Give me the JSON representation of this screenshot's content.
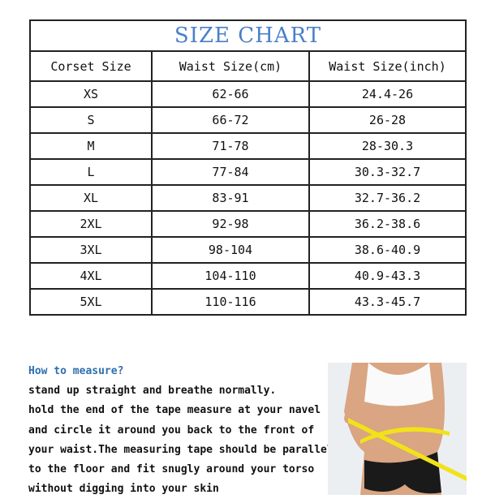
{
  "title": "SIZE CHART",
  "headers": [
    "Corset Size",
    "Waist Size(cm)",
    "Waist Size(inch)"
  ],
  "rows": [
    [
      "XS",
      "62-66",
      "24.4-26"
    ],
    [
      "S",
      "66-72",
      "26-28"
    ],
    [
      "M",
      "71-78",
      "28-30.3"
    ],
    [
      "L",
      "77-84",
      "30.3-32.7"
    ],
    [
      "XL",
      "83-91",
      "32.7-36.2"
    ],
    [
      "2XL",
      "92-98",
      "36.2-38.6"
    ],
    [
      "3XL",
      "98-104",
      "38.6-40.9"
    ],
    [
      "4XL",
      "104-110",
      "40.9-43.3"
    ],
    [
      "5XL",
      "110-116",
      "43.3-45.7"
    ]
  ],
  "instructions": {
    "heading": "How to measure?",
    "lines": [
      "stand up straight and breathe normally.",
      "hold the end of the tape measure at your navel",
      "and circle it around you back to the front of",
      "your waist.The measuring tape should be parallel",
      "to the floor and fit snugly around your torso",
      "without digging into your skin"
    ]
  },
  "colors": {
    "title": "#4a7fc8",
    "heading": "#2f6fae",
    "tape": "#f2e21a"
  }
}
